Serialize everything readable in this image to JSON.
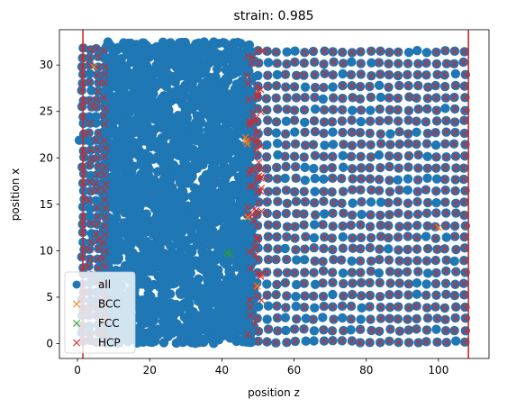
{
  "chart_data": {
    "type": "scatter",
    "title": "strain: 0.985",
    "xlabel": "position z",
    "ylabel": "position x",
    "xlim": [
      -5,
      114
    ],
    "ylim": [
      -1.6,
      33.8
    ],
    "xticks": [
      0,
      20,
      40,
      60,
      80,
      100
    ],
    "yticks": [
      0,
      5,
      10,
      15,
      20,
      25,
      30
    ],
    "grid": false,
    "legend_position": "lower left",
    "vertical_lines": [
      1.5,
      108.3
    ],
    "vertical_line_color": "#d62728",
    "series": [
      {
        "name": "all",
        "marker": "o",
        "color": "#1f77b4",
        "description_regions": [
          {
            "z_range": [
              1,
              49
            ],
            "x_range": [
              0,
              32.5
            ],
            "kind": "disordered"
          },
          {
            "z_range": [
              50,
              108
            ],
            "x_range": [
              0,
              32.5
            ],
            "kind": "lattice"
          }
        ]
      },
      {
        "name": "BCC",
        "marker": "x",
        "color": "#ff7f0e",
        "points": [
          [
            4.5,
            29.8
          ],
          [
            46.5,
            22.2
          ],
          [
            46.8,
            21.8
          ],
          [
            47.0,
            21.5
          ],
          [
            47.2,
            13.6
          ],
          [
            49.8,
            6.2
          ],
          [
            100.0,
            12.5
          ]
        ]
      },
      {
        "name": "FCC",
        "marker": "x",
        "color": "#2ca02c",
        "points": [
          [
            41.5,
            9.8
          ],
          [
            42.2,
            9.6
          ]
        ]
      },
      {
        "name": "HCP",
        "marker": "x",
        "color": "#d62728",
        "description_regions": [
          {
            "z_range": [
              1,
              8
            ],
            "x_range": [
              0,
              32.5
            ],
            "kind": "edge-layers"
          },
          {
            "z_range": [
              49,
              108
            ],
            "x_range": [
              0,
              32.5
            ],
            "kind": "lattice"
          }
        ]
      }
    ]
  }
}
